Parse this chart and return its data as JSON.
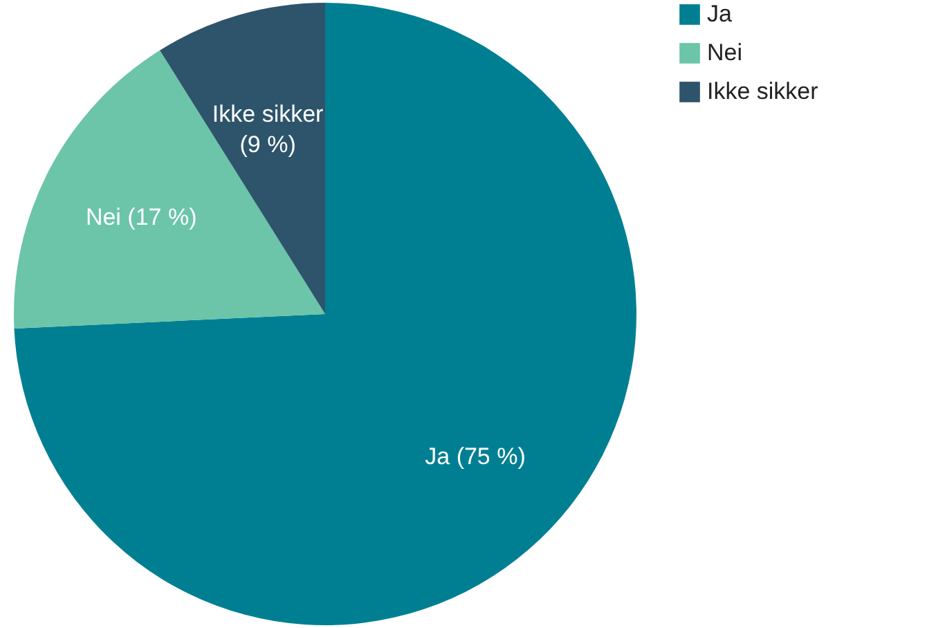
{
  "chart_data": {
    "type": "pie",
    "categories": [
      "Ja",
      "Nei",
      "Ikke sikker"
    ],
    "values": [
      75,
      17,
      9
    ],
    "colors": [
      "#007f93",
      "#6cc4a9",
      "#2d546b"
    ],
    "value_labels": [
      "Ja (75 %)",
      "Nei (17 %)",
      "Ikke sikker (9 %)"
    ],
    "legend": "right"
  }
}
